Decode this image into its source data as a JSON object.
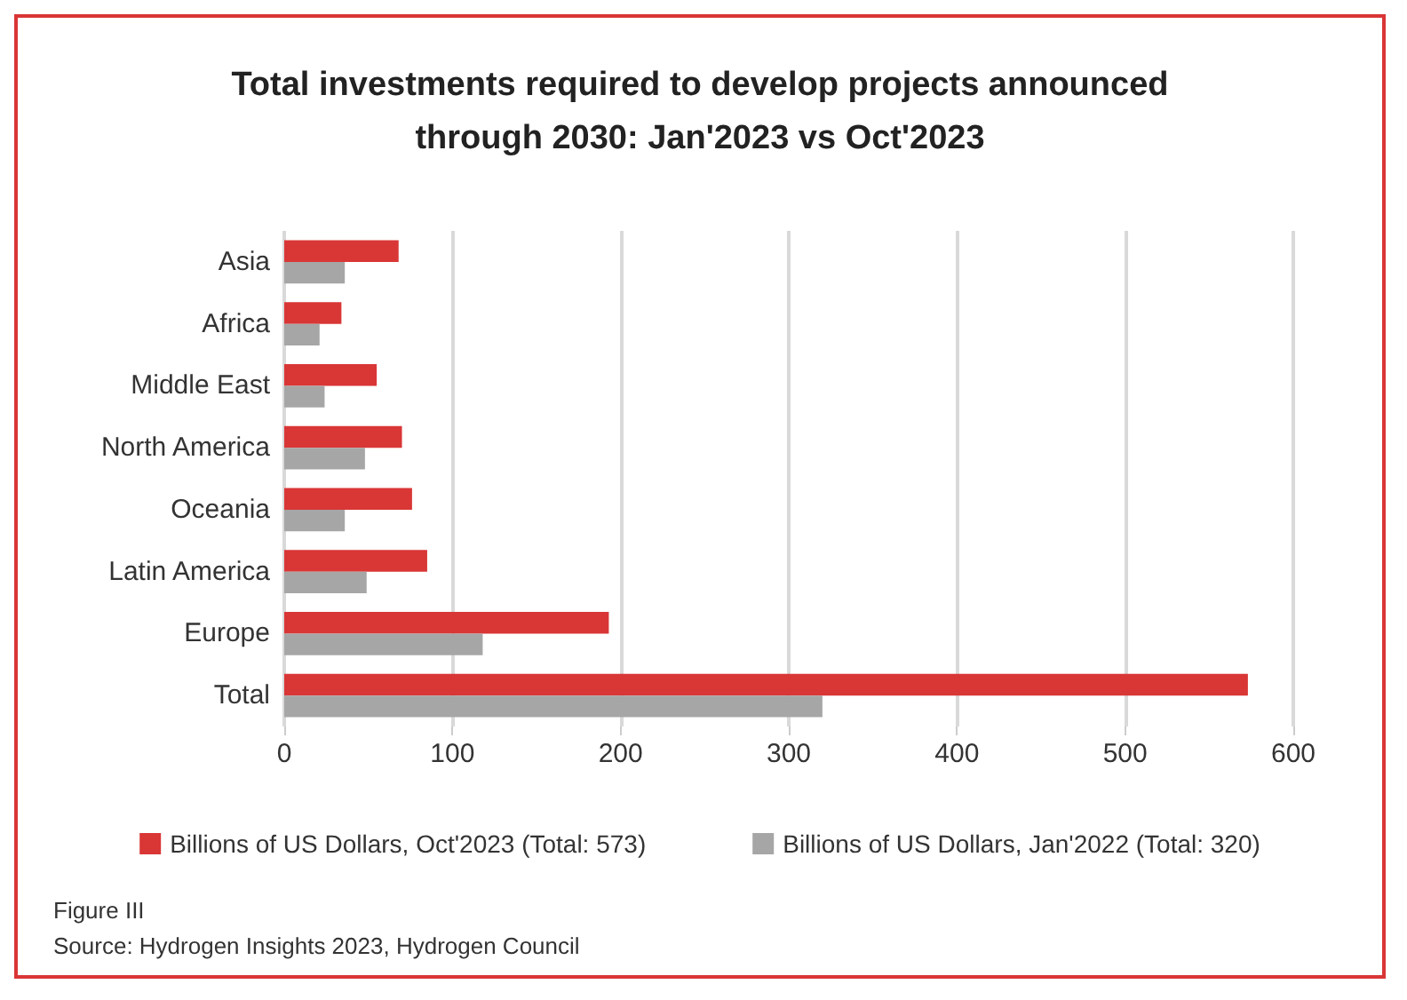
{
  "chart_data": {
    "type": "bar",
    "orientation": "horizontal",
    "title": "Total investments required to develop projects announced\nthrough 2030: Jan'2023 vs Oct'2023",
    "categories": [
      "Asia",
      "Africa",
      "Middle East",
      "North America",
      "Oceania",
      "Latin America",
      "Europe",
      "Total"
    ],
    "series": [
      {
        "name": "Billions of US Dollars, Oct'2023 (Total: 573)",
        "color": "#d93636",
        "values": [
          68,
          34,
          55,
          70,
          76,
          85,
          193,
          573
        ]
      },
      {
        "name": "Billions of US Dollars, Jan'2022 (Total: 320)",
        "color": "#a6a6a6",
        "values": [
          36,
          21,
          24,
          48,
          36,
          49,
          118,
          320
        ]
      }
    ],
    "xlim": [
      0,
      600
    ],
    "xticks": [
      0,
      100,
      200,
      300,
      400,
      500,
      600
    ],
    "grid": "x",
    "legend": "bottom",
    "annotations": [
      "Figure III",
      "Source: Hydrogen Insights 2023, Hydrogen Council"
    ]
  }
}
